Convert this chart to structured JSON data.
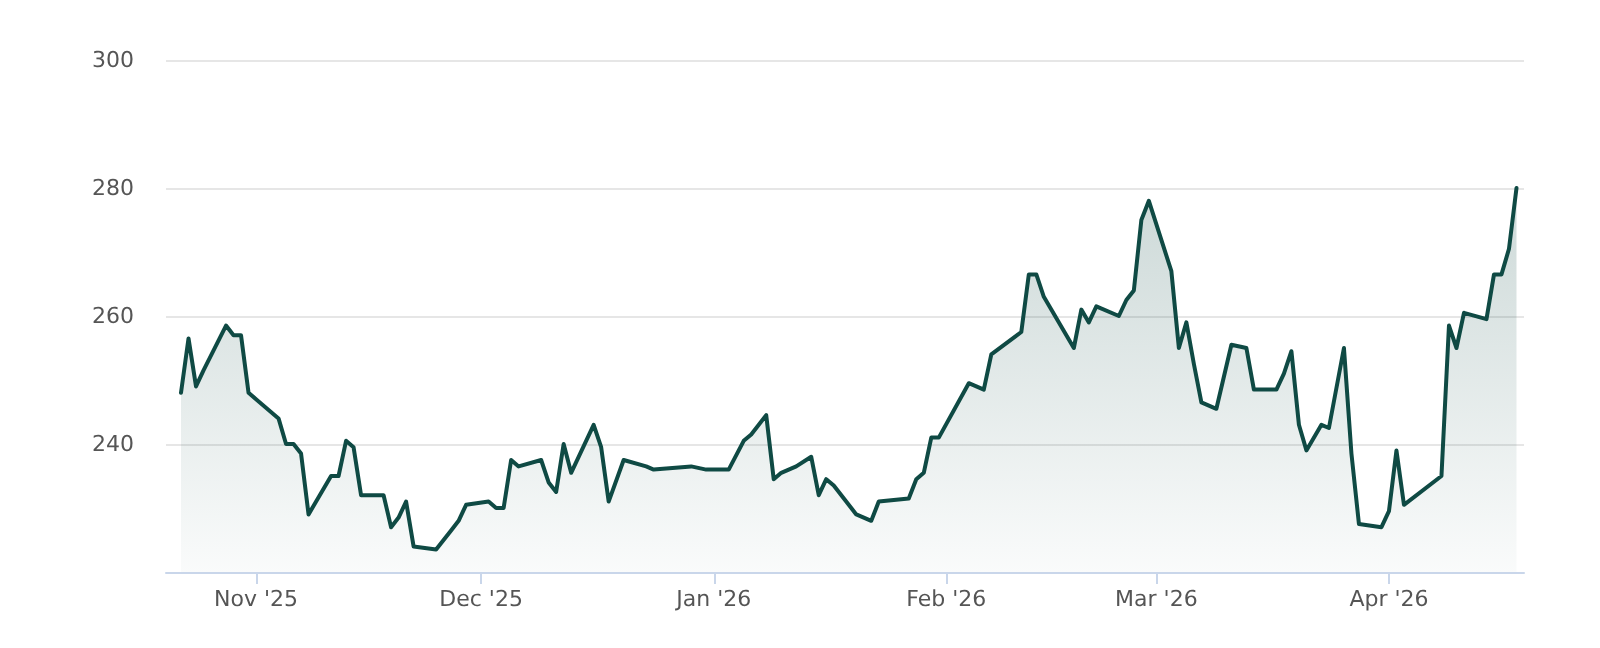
{
  "chart_data": {
    "type": "area",
    "x": [
      "2025-10-22",
      "2025-10-23",
      "2025-10-24",
      "2025-10-25",
      "2025-10-28",
      "2025-10-29",
      "2025-10-30",
      "2025-10-31",
      "2025-11-01",
      "2025-11-04",
      "2025-11-05",
      "2025-11-06",
      "2025-11-07",
      "2025-11-08",
      "2025-11-11",
      "2025-11-12",
      "2025-11-13",
      "2025-11-14",
      "2025-11-15",
      "2025-11-18",
      "2025-11-19",
      "2025-11-20",
      "2025-11-21",
      "2025-11-22",
      "2025-11-25",
      "2025-11-27",
      "2025-11-28",
      "2025-11-29",
      "2025-12-02",
      "2025-12-03",
      "2025-12-04",
      "2025-12-05",
      "2025-12-06",
      "2025-12-09",
      "2025-12-10",
      "2025-12-11",
      "2025-12-12",
      "2025-12-13",
      "2025-12-16",
      "2025-12-17",
      "2025-12-18",
      "2025-12-20",
      "2025-12-23",
      "2025-12-24",
      "2025-12-29",
      "2025-12-31",
      "2026-01-03",
      "2026-01-05",
      "2026-01-06",
      "2026-01-08",
      "2026-01-09",
      "2026-01-10",
      "2026-01-12",
      "2026-01-14",
      "2026-01-15",
      "2026-01-16",
      "2026-01-17",
      "2026-01-20",
      "2026-01-22",
      "2026-01-23",
      "2026-01-27",
      "2026-01-28",
      "2026-01-29",
      "2026-01-30",
      "2026-01-31",
      "2026-02-04",
      "2026-02-06",
      "2026-02-07",
      "2026-02-11",
      "2026-02-12",
      "2026-02-13",
      "2026-02-14",
      "2026-02-18",
      "2026-02-19",
      "2026-02-20",
      "2026-02-21",
      "2026-02-24",
      "2026-02-25",
      "2026-02-26",
      "2026-02-27",
      "2026-02-28",
      "2026-03-03",
      "2026-03-04",
      "2026-03-05",
      "2026-03-06",
      "2026-03-07",
      "2026-03-09",
      "2026-03-11",
      "2026-03-13",
      "2026-03-14",
      "2026-03-17",
      "2026-03-18",
      "2026-03-19",
      "2026-03-20",
      "2026-03-21",
      "2026-03-23",
      "2026-03-24",
      "2026-03-26",
      "2026-03-27",
      "2026-03-28",
      "2026-03-31",
      "2026-04-01",
      "2026-04-02",
      "2026-04-03",
      "2026-04-08",
      "2026-04-09",
      "2026-04-10",
      "2026-04-11",
      "2026-04-14",
      "2026-04-15",
      "2026-04-16",
      "2026-04-17",
      "2026-04-18"
    ],
    "series": [
      {
        "color": "#0f4a44",
        "values": [
          248,
          256.5,
          249,
          251.5,
          258.5,
          257,
          257,
          248,
          247,
          244,
          240,
          240,
          238.5,
          229,
          235,
          235,
          240.5,
          239.5,
          232,
          232,
          227,
          228.5,
          231,
          224,
          223.5,
          226.5,
          228,
          230.5,
          231,
          230,
          230,
          237.5,
          236.5,
          237.5,
          234,
          232.5,
          240,
          235.5,
          243,
          239.5,
          231,
          237.5,
          236.5,
          236,
          236.5,
          236,
          236,
          240.5,
          241.5,
          244.5,
          234.5,
          235.5,
          236.5,
          238,
          232,
          234.5,
          233.5,
          229,
          228,
          231,
          231.5,
          234.5,
          235.5,
          241,
          241,
          249.5,
          248.5,
          254,
          257.5,
          266.5,
          266.5,
          263,
          255,
          261,
          259,
          261.5,
          260,
          262.5,
          264,
          275,
          278,
          267,
          255,
          259,
          252.5,
          246.5,
          245.5,
          255.5,
          255,
          248.5,
          248.5,
          251,
          254.5,
          243,
          239,
          243,
          242.5,
          255,
          238.5,
          227.5,
          227,
          229.5,
          239,
          230.5,
          235,
          258.5,
          255,
          260.5,
          259.5,
          266.5,
          266.5,
          270.5,
          280
        ]
      }
    ],
    "xlim": [
      "2025-10-20",
      "2026-04-19"
    ],
    "xticks": [
      {
        "value": "2025-11-01",
        "label": "Nov '25"
      },
      {
        "value": "2025-12-01",
        "label": "Dec '25"
      },
      {
        "value": "2026-01-01",
        "label": "Jan '26"
      },
      {
        "value": "2026-02-01",
        "label": "Feb '26"
      },
      {
        "value": "2026-03-01",
        "label": "Mar '26"
      },
      {
        "value": "2026-04-01",
        "label": "Apr '26"
      }
    ],
    "ylim": [
      220,
      300
    ],
    "yticks": [
      240,
      260,
      280,
      300
    ],
    "grid": "y"
  }
}
